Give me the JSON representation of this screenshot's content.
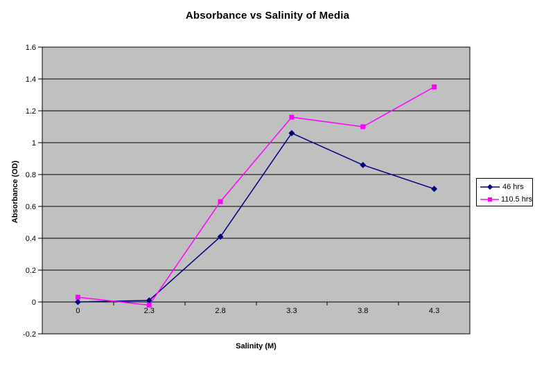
{
  "chart_data": {
    "type": "line",
    "title": "Absorbance vs Salinity of Media",
    "xlabel": "Salinity (M)",
    "ylabel": "Absorbance (OD)",
    "categories": [
      "0",
      "2.3",
      "2.8",
      "3.3",
      "3.8",
      "4.3"
    ],
    "series": [
      {
        "name": "46 hrs",
        "color": "#000080",
        "marker": "diamond",
        "values": [
          0.0,
          0.01,
          0.41,
          1.06,
          0.86,
          0.71
        ]
      },
      {
        "name": "110.5 hrs",
        "color": "#FF00FF",
        "marker": "square",
        "values": [
          0.03,
          -0.02,
          0.63,
          1.16,
          1.1,
          1.35
        ]
      }
    ],
    "ylim": [
      -0.2,
      1.6
    ],
    "ytick_step": 0.2,
    "grid": true,
    "legend_position": "right",
    "plot_bg": "#C0C0C0",
    "gridline_color": "#000000",
    "axis_color": "#000000",
    "text_color": "#000000"
  }
}
